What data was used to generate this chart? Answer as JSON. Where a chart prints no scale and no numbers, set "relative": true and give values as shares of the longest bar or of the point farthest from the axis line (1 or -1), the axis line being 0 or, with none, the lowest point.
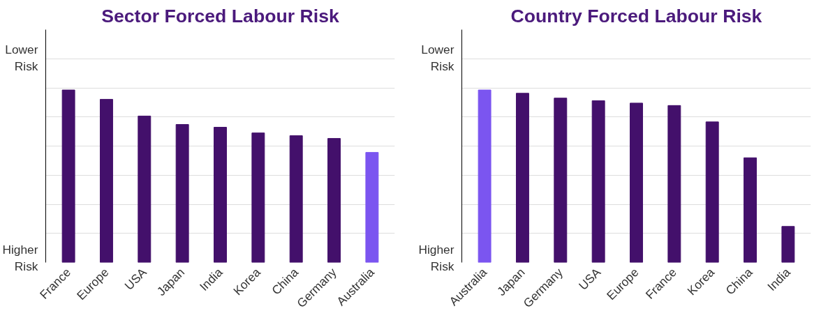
{
  "chart_data": [
    {
      "type": "bar",
      "title": "Sector Forced Labour Risk",
      "categories": [
        "France",
        "Europe",
        "USA",
        "Japan",
        "India",
        "Korea",
        "China",
        "Germany",
        "Australia"
      ],
      "values": [
        1,
        0.946,
        0.849,
        0.8,
        0.784,
        0.751,
        0.735,
        0.719,
        0.638
      ],
      "colors": [
        "#43106b",
        "#43106b",
        "#43106b",
        "#43106b",
        "#43106b",
        "#43106b",
        "#43106b",
        "#43106b",
        "#7b55f0"
      ],
      "relative": true,
      "grid": "y",
      "annotations": [
        "Lower\nRisk",
        "Higher\nRisk"
      ]
    },
    {
      "type": "bar",
      "title": "Country Forced Labour Risk",
      "categories": [
        "Australia",
        "Japan",
        "Germany",
        "USA",
        "Europe",
        "France",
        "Korea",
        "China",
        "India"
      ],
      "values": [
        1,
        0.981,
        0.953,
        0.938,
        0.924,
        0.91,
        0.815,
        0.607,
        0.209
      ],
      "colors": [
        "#7b55f0",
        "#43106b",
        "#43106b",
        "#43106b",
        "#43106b",
        "#43106b",
        "#43106b",
        "#43106b",
        "#43106b"
      ],
      "relative": true,
      "grid": "y",
      "annotations": [
        "Lower\nRisk",
        "Higher\nRisk"
      ]
    }
  ]
}
